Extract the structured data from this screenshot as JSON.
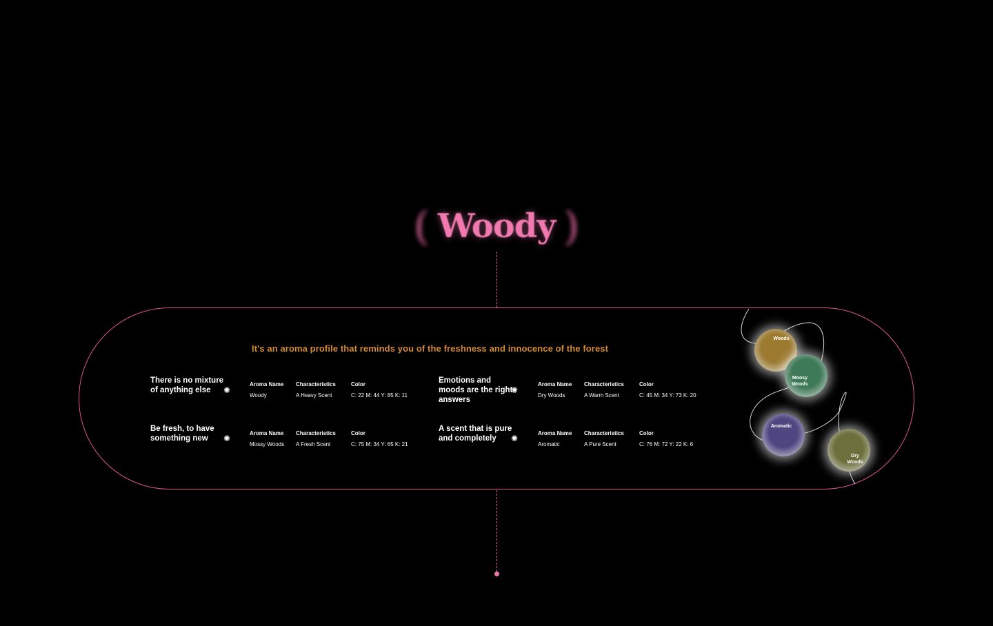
{
  "header": {
    "paren_open": "(",
    "title": "Woody",
    "paren_close": ")"
  },
  "panel": {
    "tagline": "It's an aroma profile that reminds you of the freshness and innocence of the forest",
    "star_glyph": "✺",
    "headers": {
      "name": "Aroma Name",
      "characteristics": "Characteristics",
      "color": "Color"
    },
    "entries": [
      {
        "headline": "There is no mixture of anything else",
        "name": "Woody",
        "characteristics": "A Heavy Scent",
        "color": "C: 22  M: 44  Y: 85  K: 11"
      },
      {
        "headline": "Emotions and moods are the right answers",
        "name": "Dry Woods",
        "characteristics": "A Warm Scent",
        "color": "C: 45  M: 34  Y: 73  K: 20"
      },
      {
        "headline": "Be fresh, to have something new",
        "name": "Mossy Woods",
        "characteristics": "A Fresh Scent",
        "color": "C: 75  M: 34  Y: 65  K: 21"
      },
      {
        "headline": "A scent that is pure and completely",
        "name": "Aromatic",
        "characteristics": "A Pure Scent",
        "color": "C: 76  M: 72  Y: 22  K: 6"
      }
    ]
  },
  "orbs": [
    {
      "label": "Woods",
      "color": "#9c7a30"
    },
    {
      "label": "Moosy Woods",
      "color": "#3f7a58"
    },
    {
      "label": "Aromatic",
      "color": "#4f4681"
    },
    {
      "label": "Dry Woods",
      "color": "#6d6f3c"
    }
  ],
  "colors": {
    "accent_pink": "#f07aaf",
    "border_pink": "#d9568f",
    "tagline_orange": "#d58a34",
    "background": "#000000"
  }
}
